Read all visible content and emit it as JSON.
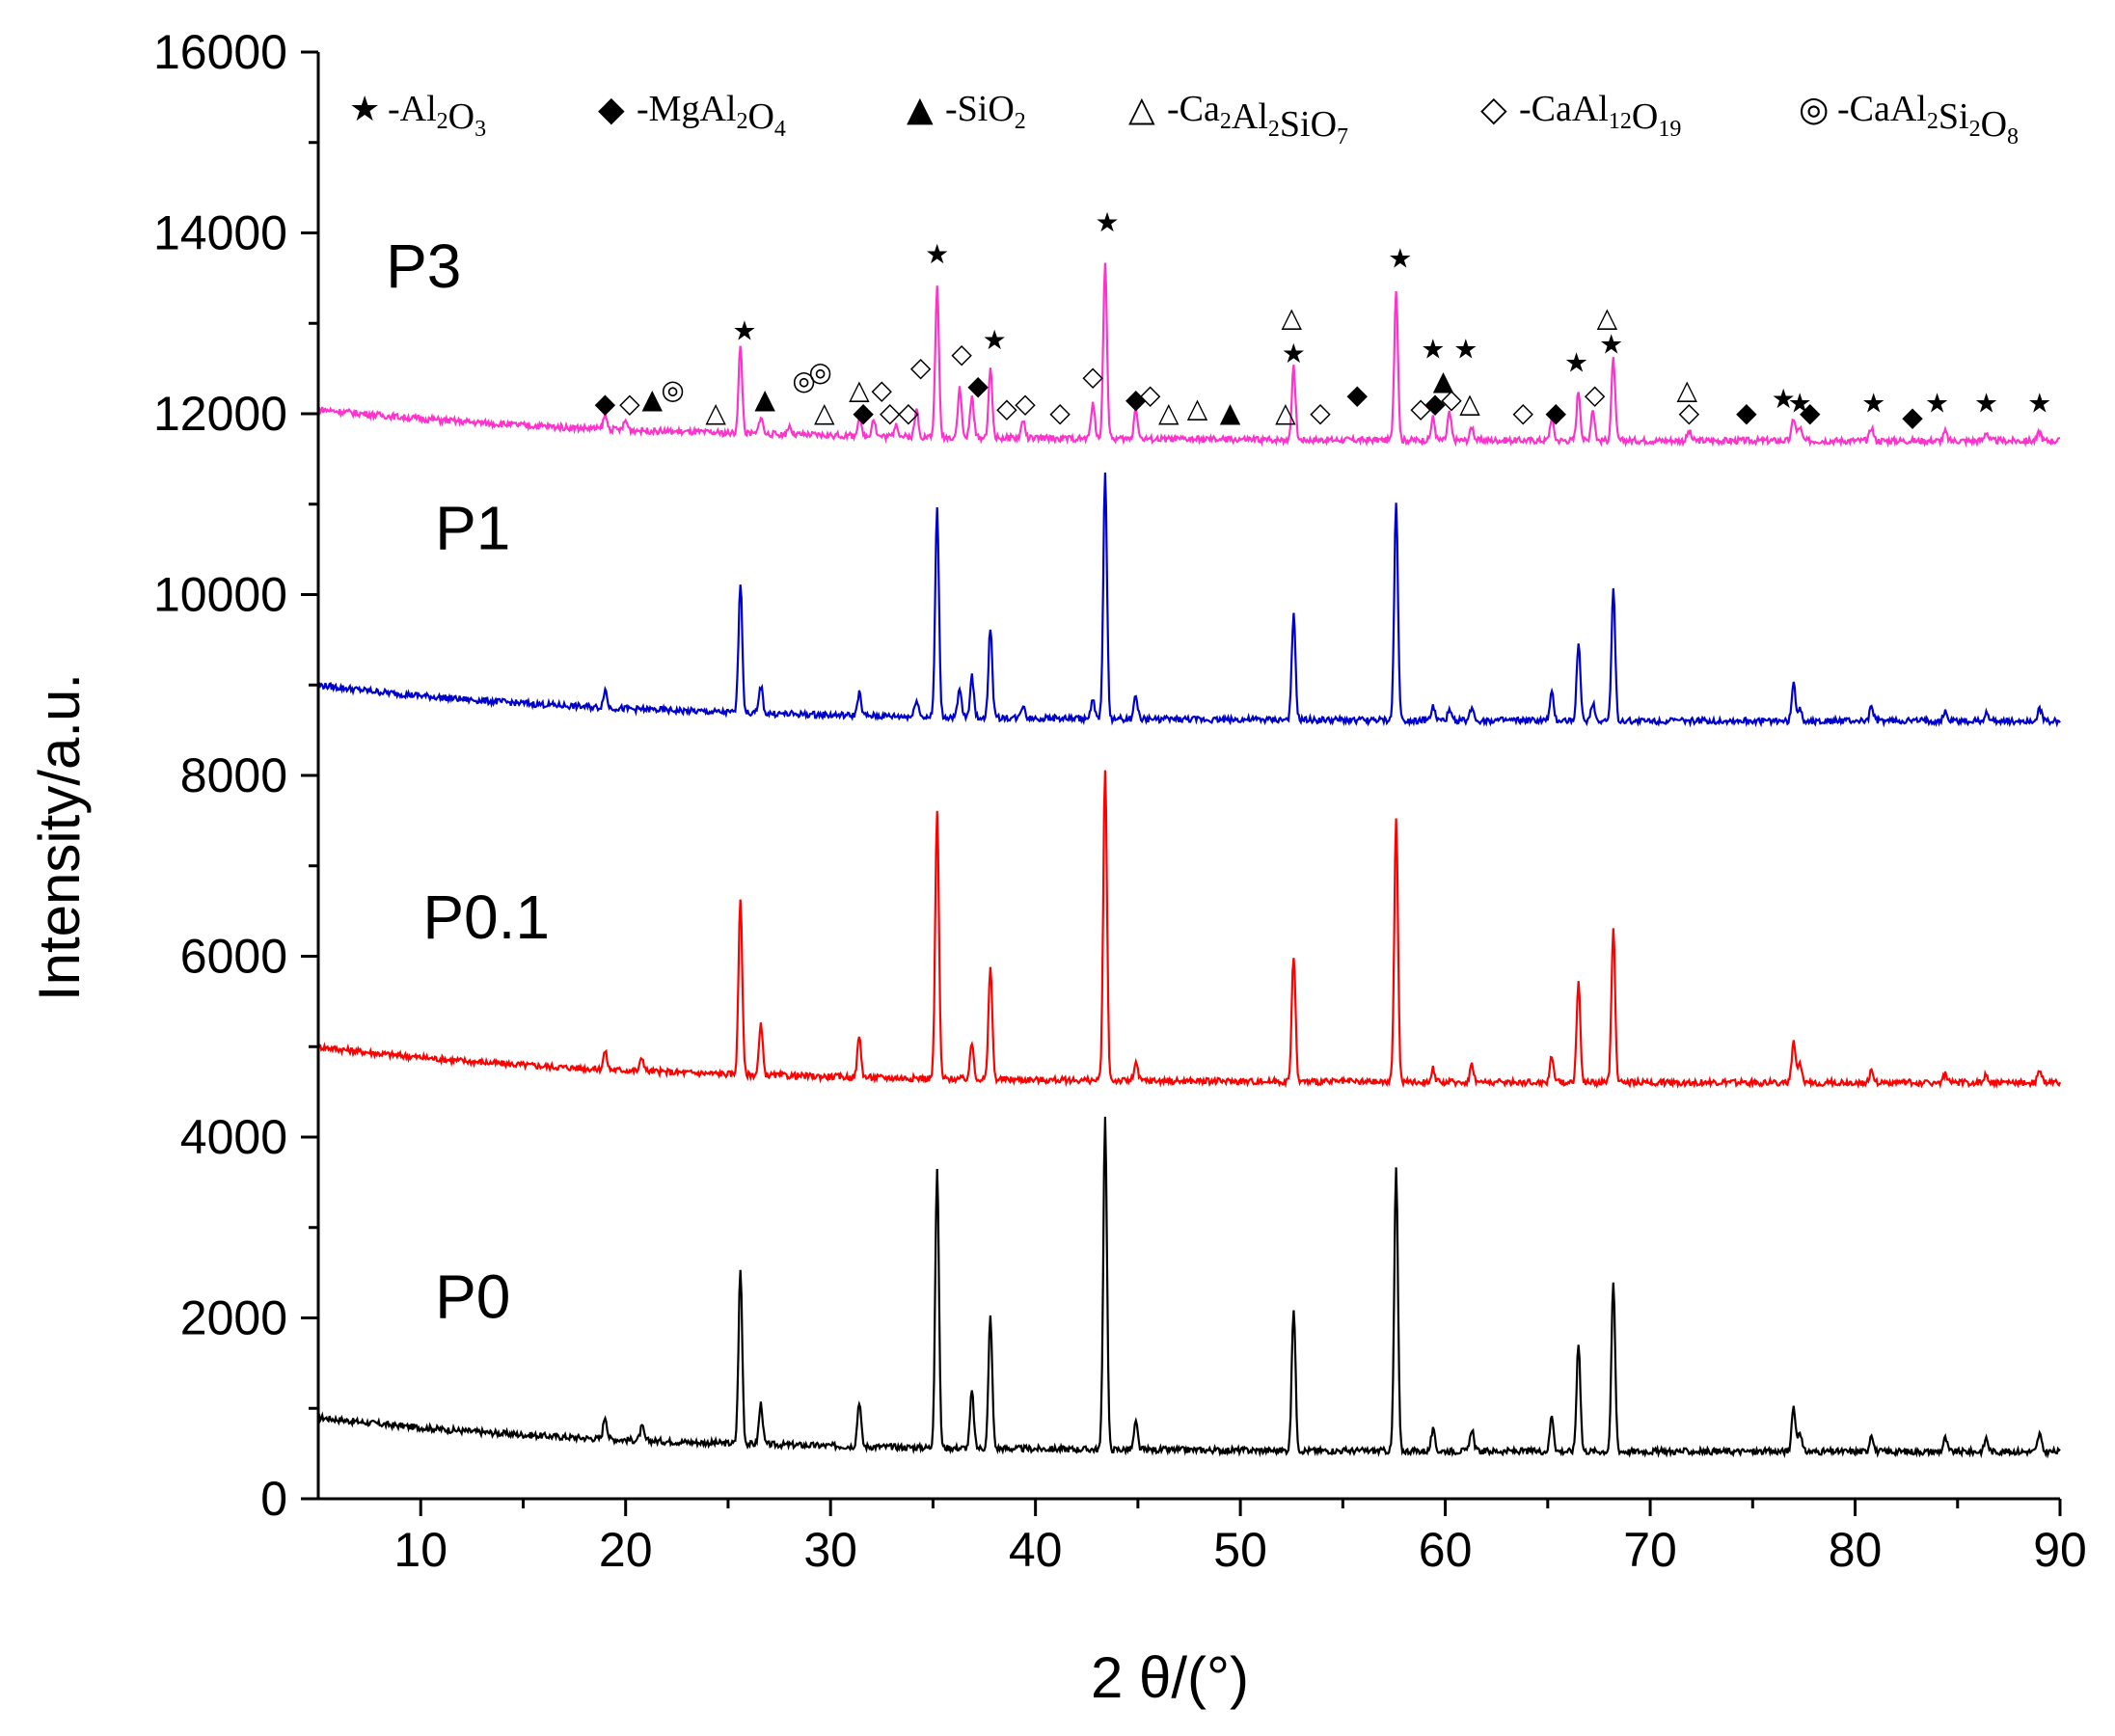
{
  "chart_data": {
    "type": "line",
    "title": "",
    "xlabel": "2 θ/(°)",
    "ylabel": "Intensity/a.u.",
    "xlim": [
      5,
      90
    ],
    "ylim": [
      0,
      16000
    ],
    "xticks": [
      10,
      20,
      30,
      40,
      50,
      60,
      70,
      80,
      90
    ],
    "yticks": [
      0,
      2000,
      4000,
      6000,
      8000,
      10000,
      12000,
      14000,
      16000
    ],
    "grid": false,
    "series": [
      {
        "name": "P0",
        "color": "#000000",
        "baseline_start": 900,
        "baseline_end": 520,
        "peaks": [
          [
            19,
            250
          ],
          [
            20.8,
            150
          ],
          [
            25.6,
            1920
          ],
          [
            26.6,
            450
          ],
          [
            31.4,
            500
          ],
          [
            35.2,
            3080
          ],
          [
            36.9,
            630
          ],
          [
            37.8,
            1460
          ],
          [
            43.4,
            3670
          ],
          [
            44.9,
            300
          ],
          [
            52.6,
            1580
          ],
          [
            57.6,
            3110
          ],
          [
            59.4,
            230
          ],
          [
            61.3,
            250
          ],
          [
            65.2,
            400
          ],
          [
            66.5,
            1210
          ],
          [
            68.2,
            1870
          ],
          [
            77,
            500
          ],
          [
            77.3,
            230
          ],
          [
            80.8,
            200
          ],
          [
            84.4,
            150
          ],
          [
            86.4,
            150
          ],
          [
            89,
            200
          ]
        ]
      },
      {
        "name": "P0.1",
        "color": "#ff0000",
        "baseline_start": 5000,
        "baseline_end": 4600,
        "peaks": [
          [
            19,
            200
          ],
          [
            20.8,
            150
          ],
          [
            25.6,
            1950
          ],
          [
            26.6,
            550
          ],
          [
            31.4,
            450
          ],
          [
            35.2,
            2950
          ],
          [
            36.9,
            400
          ],
          [
            37.8,
            1250
          ],
          [
            43.4,
            3450
          ],
          [
            44.9,
            200
          ],
          [
            52.6,
            1400
          ],
          [
            57.6,
            2900
          ],
          [
            59.4,
            150
          ],
          [
            61.3,
            200
          ],
          [
            65.2,
            300
          ],
          [
            66.5,
            1100
          ],
          [
            68.2,
            1700
          ],
          [
            77,
            450
          ],
          [
            77.3,
            200
          ],
          [
            80.8,
            150
          ],
          [
            84.4,
            100
          ],
          [
            86.4,
            100
          ],
          [
            89,
            150
          ]
        ]
      },
      {
        "name": "P1",
        "color": "#0000cc",
        "baseline_start": 9000,
        "baseline_end": 8600,
        "peaks": [
          [
            19,
            200
          ],
          [
            25.6,
            1450
          ],
          [
            26.6,
            300
          ],
          [
            31.4,
            250
          ],
          [
            34.2,
            200
          ],
          [
            35.2,
            2300
          ],
          [
            36.3,
            300
          ],
          [
            36.9,
            450
          ],
          [
            37.8,
            1000
          ],
          [
            39.4,
            150
          ],
          [
            42.8,
            200
          ],
          [
            43.4,
            2700
          ],
          [
            44.9,
            250
          ],
          [
            52.6,
            1150
          ],
          [
            57.6,
            2400
          ],
          [
            59.4,
            150
          ],
          [
            60.2,
            100
          ],
          [
            61.3,
            150
          ],
          [
            65.2,
            300
          ],
          [
            66.5,
            850
          ],
          [
            67.2,
            200
          ],
          [
            68.2,
            1450
          ],
          [
            77,
            400
          ],
          [
            77.3,
            150
          ],
          [
            80.8,
            150
          ],
          [
            84.4,
            100
          ],
          [
            86.4,
            100
          ],
          [
            89,
            150
          ]
        ]
      },
      {
        "name": "P3",
        "color": "#ff33cc",
        "baseline_start": 12050,
        "baseline_end": 11700,
        "peaks": [
          [
            19,
            150
          ],
          [
            20,
            100
          ],
          [
            25.6,
            950
          ],
          [
            26.6,
            200
          ],
          [
            28,
            100
          ],
          [
            31.4,
            200
          ],
          [
            32.1,
            200
          ],
          [
            33.2,
            150
          ],
          [
            34.2,
            300
          ],
          [
            35.2,
            1650
          ],
          [
            36.3,
            550
          ],
          [
            36.9,
            450
          ],
          [
            37.8,
            750
          ],
          [
            39.4,
            200
          ],
          [
            42.8,
            400
          ],
          [
            43.4,
            1950
          ],
          [
            44.9,
            350
          ],
          [
            52.6,
            800
          ],
          [
            57.6,
            1650
          ],
          [
            59.4,
            250
          ],
          [
            60.2,
            300
          ],
          [
            61.3,
            150
          ],
          [
            65.2,
            250
          ],
          [
            66.5,
            550
          ],
          [
            67.2,
            350
          ],
          [
            68.2,
            900
          ],
          [
            71.9,
            100
          ],
          [
            77,
            250
          ],
          [
            77.3,
            150
          ],
          [
            80.8,
            150
          ],
          [
            84.4,
            100
          ],
          [
            86.4,
            100
          ],
          [
            89,
            100
          ]
        ]
      }
    ],
    "legend": [
      {
        "symbol": "★",
        "label": "-Al2O3",
        "text": "-Al",
        "sub1": "2",
        "mid": "O",
        "sub2": "3"
      },
      {
        "symbol": "◆",
        "label": "-MgAl2O4",
        "text": "-MgAl",
        "sub1": "2",
        "mid": "O",
        "sub2": "4"
      },
      {
        "symbol": "▲",
        "label": "-SiO2",
        "text": "-SiO",
        "sub1": "2",
        "mid": "",
        "sub2": ""
      },
      {
        "symbol": "△",
        "label": "-Ca2Al2SiO7",
        "text": "-Ca",
        "sub1": "2",
        "mid": "Al",
        "sub2": "2",
        "mid2": "SiO",
        "sub3": "7"
      },
      {
        "symbol": "◇",
        "label": "-CaAl12O19",
        "text": "-CaAl",
        "sub1": "12",
        "mid": "O",
        "sub2": "19"
      },
      {
        "symbol": "◎",
        "label": "-CaAl2Si2O8",
        "text": "-CaAl",
        "sub1": "2",
        "mid": "Si",
        "sub2": "2",
        "mid2": "O",
        "sub3": "8"
      }
    ],
    "legend_placement": "top",
    "phase_markers": [
      {
        "symbol": "◆",
        "x": 19,
        "y": 12100
      },
      {
        "symbol": "◇",
        "x": 20.2,
        "y": 12100
      },
      {
        "symbol": "▲",
        "x": 21.3,
        "y": 12150
      },
      {
        "symbol": "◎",
        "x": 22.3,
        "y": 12250
      },
      {
        "symbol": "△",
        "x": 24.4,
        "y": 12000
      },
      {
        "symbol": "★",
        "x": 25.8,
        "y": 12900
      },
      {
        "symbol": "▲",
        "x": 26.8,
        "y": 12150
      },
      {
        "symbol": "◎",
        "x": 28.7,
        "y": 12350
      },
      {
        "symbol": "◎",
        "x": 29.5,
        "y": 12450
      },
      {
        "symbol": "△",
        "x": 29.7,
        "y": 12000
      },
      {
        "symbol": "◆",
        "x": 31.6,
        "y": 12000
      },
      {
        "symbol": "△",
        "x": 31.4,
        "y": 12250
      },
      {
        "symbol": "◇",
        "x": 32.5,
        "y": 12250
      },
      {
        "symbol": "◇",
        "x": 32.9,
        "y": 12000
      },
      {
        "symbol": "◇",
        "x": 33.8,
        "y": 12000
      },
      {
        "symbol": "◇",
        "x": 34.4,
        "y": 12500
      },
      {
        "symbol": "★",
        "x": 35.2,
        "y": 13750
      },
      {
        "symbol": "◇",
        "x": 36.4,
        "y": 12650
      },
      {
        "symbol": "◆",
        "x": 37.2,
        "y": 12300
      },
      {
        "symbol": "★",
        "x": 38.0,
        "y": 12800
      },
      {
        "symbol": "◇",
        "x": 38.6,
        "y": 12050
      },
      {
        "symbol": "◇",
        "x": 39.5,
        "y": 12100
      },
      {
        "symbol": "◇",
        "x": 41.2,
        "y": 12000
      },
      {
        "symbol": "◇",
        "x": 42.8,
        "y": 12400
      },
      {
        "symbol": "★",
        "x": 43.5,
        "y": 14100
      },
      {
        "symbol": "◆",
        "x": 44.9,
        "y": 12150
      },
      {
        "symbol": "◇",
        "x": 45.6,
        "y": 12200
      },
      {
        "symbol": "△",
        "x": 46.5,
        "y": 12000
      },
      {
        "symbol": "△",
        "x": 47.9,
        "y": 12050
      },
      {
        "symbol": "▲",
        "x": 49.5,
        "y": 12000
      },
      {
        "symbol": "△",
        "x": 52.5,
        "y": 13050
      },
      {
        "symbol": "★",
        "x": 52.6,
        "y": 12650
      },
      {
        "symbol": "△",
        "x": 52.2,
        "y": 12000
      },
      {
        "symbol": "◇",
        "x": 53.9,
        "y": 12000
      },
      {
        "symbol": "◆",
        "x": 55.7,
        "y": 12200
      },
      {
        "symbol": "★",
        "x": 57.8,
        "y": 13700
      },
      {
        "symbol": "★",
        "x": 59.4,
        "y": 12700
      },
      {
        "symbol": "◇",
        "x": 58.8,
        "y": 12050
      },
      {
        "symbol": "◆",
        "x": 59.5,
        "y": 12100
      },
      {
        "symbol": "▲",
        "x": 59.9,
        "y": 12350
      },
      {
        "symbol": "◇",
        "x": 60.3,
        "y": 12150
      },
      {
        "symbol": "★",
        "x": 61.0,
        "y": 12700
      },
      {
        "symbol": "△",
        "x": 61.2,
        "y": 12100
      },
      {
        "symbol": "◇",
        "x": 63.8,
        "y": 12000
      },
      {
        "symbol": "◆",
        "x": 65.4,
        "y": 12000
      },
      {
        "symbol": "★",
        "x": 66.4,
        "y": 12550
      },
      {
        "symbol": "◇",
        "x": 67.3,
        "y": 12200
      },
      {
        "symbol": "△",
        "x": 67.9,
        "y": 13050
      },
      {
        "symbol": "★",
        "x": 68.1,
        "y": 12750
      },
      {
        "symbol": "△",
        "x": 71.8,
        "y": 12250
      },
      {
        "symbol": "◇",
        "x": 71.9,
        "y": 12000
      },
      {
        "symbol": "◆",
        "x": 74.7,
        "y": 12000
      },
      {
        "symbol": "★",
        "x": 76.5,
        "y": 12150
      },
      {
        "symbol": "★",
        "x": 77.3,
        "y": 12100
      },
      {
        "symbol": "◆",
        "x": 77.8,
        "y": 12000
      },
      {
        "symbol": "★",
        "x": 80.9,
        "y": 12100
      },
      {
        "symbol": "◆",
        "x": 82.8,
        "y": 11950
      },
      {
        "symbol": "★",
        "x": 84,
        "y": 12100
      },
      {
        "symbol": "★",
        "x": 86.4,
        "y": 12100
      },
      {
        "symbol": "★",
        "x": 89,
        "y": 12100
      }
    ]
  }
}
